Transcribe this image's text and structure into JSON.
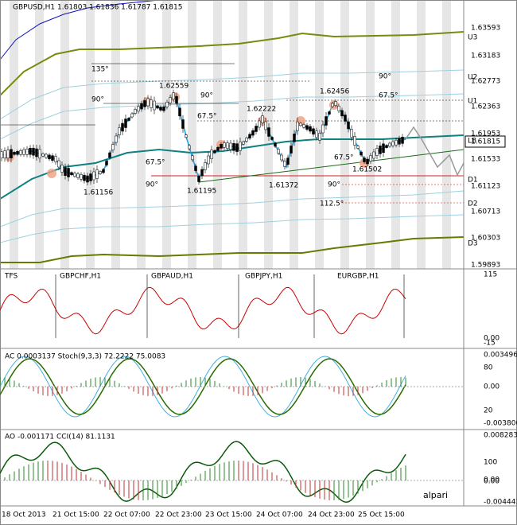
{
  "header": {
    "text": "GBPUSD,H1  1.61803 1.61836 1.61787 1.61815"
  },
  "price_axis": {
    "labels": [
      "1.63593",
      "1.63183",
      "1.62773",
      "1.62363",
      "1.61953",
      "1.61533",
      "1.61123",
      "1.60713",
      "1.60303",
      "1.59893"
    ],
    "current": "1.61815"
  },
  "levels": [
    "U3",
    "U2",
    "U1",
    "LB",
    "D1",
    "D2",
    "D3"
  ],
  "annotations": [
    "135°",
    "90°",
    "1.62559",
    "90°",
    "1.62222",
    "67.5°",
    "1.62456",
    "90°",
    "67.5°",
    "67.5°",
    "90°",
    "1.61156",
    "1.61195",
    "1.61372",
    "67.5°",
    "1.61502",
    "90°",
    "112.5°"
  ],
  "panels": [
    {
      "title": "TFS",
      "labels": [
        "GBPCHF,H1",
        "GBPAUD,H1",
        "GBPJPY,H1",
        "EURGBP,H1"
      ],
      "axis": [
        "115",
        "0.00",
        "-15"
      ]
    },
    {
      "title": "AC 0.0003137  Stoch(9,3,3) 72.2222 75.0083",
      "labels": [],
      "axis": [
        "0.003496",
        "80",
        "0.00",
        "20",
        "-0.003800"
      ]
    },
    {
      "title": "AO -0.001171  CCI(14) 81.1131",
      "labels": [
        "alpari"
      ],
      "axis": [
        "0.008283",
        "100",
        "0.00",
        "0.00",
        "-0.004443"
      ]
    }
  ],
  "time_axis": [
    "18 Oct 2013",
    "21 Oct 15:00",
    "22 Oct 07:00",
    "22 Oct 23:00",
    "23 Oct 15:00",
    "24 Oct 07:00",
    "24 Oct 23:00",
    "25 Oct 15:00"
  ]
}
